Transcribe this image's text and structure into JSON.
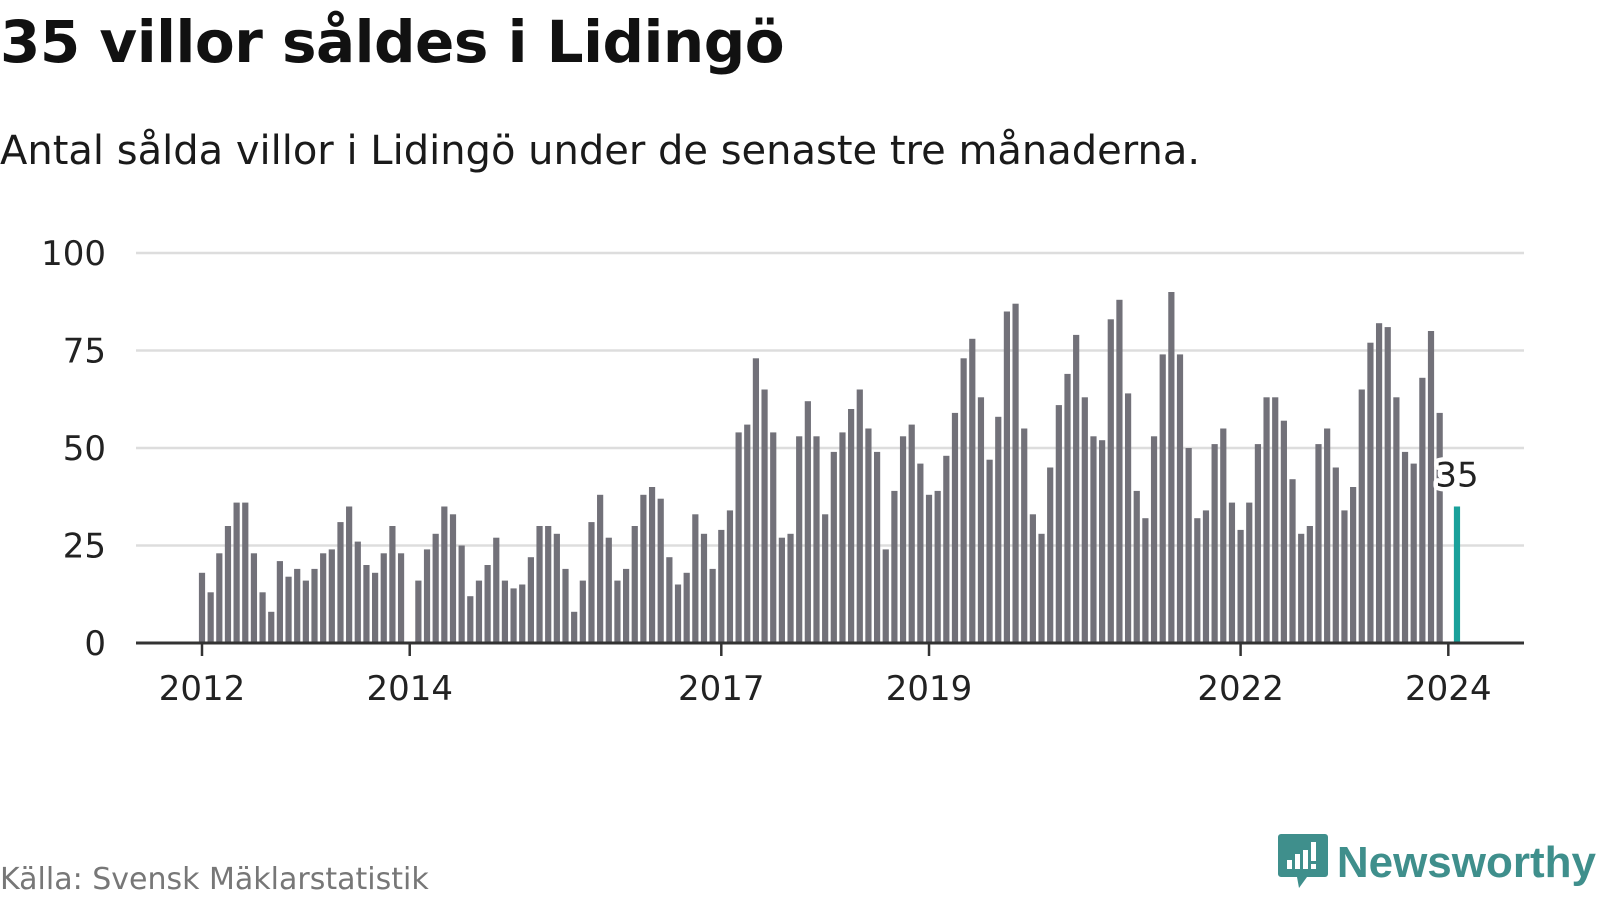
{
  "title": "35 villor såldes i Lidingö",
  "subtitle": "Antal sålda villor i Lidingö under de senaste tre månaderna.",
  "source": "Källa: Svensk Mäklarstatistik",
  "brand": {
    "name": "Newsworthy",
    "icon": "newsworthy-logo-icon",
    "color": "#3f8f8c"
  },
  "colors": {
    "bar": "#727179",
    "highlight": "#1aa19b",
    "grid": "#dddddd",
    "axis": "#333333"
  },
  "chart_data": {
    "type": "bar",
    "title": "35 villor såldes i Lidingö",
    "xlabel": "",
    "ylabel": "",
    "ylim": [
      0,
      100
    ],
    "yticks": [
      0,
      25,
      50,
      75,
      100
    ],
    "grid": true,
    "legend": "none",
    "x_start": "2011-01",
    "x_tick_labels": [
      {
        "label": "2012",
        "index": 12
      },
      {
        "label": "2014",
        "index": 36
      },
      {
        "label": "2017",
        "index": 72
      },
      {
        "label": "2019",
        "index": 96
      },
      {
        "label": "2022",
        "index": 132
      },
      {
        "label": "2024",
        "index": 156
      }
    ],
    "values": [
      null,
      null,
      null,
      null,
      null,
      null,
      null,
      null,
      null,
      null,
      null,
      null,
      18,
      13,
      23,
      30,
      36,
      36,
      23,
      13,
      8,
      21,
      17,
      19,
      16,
      19,
      23,
      24,
      31,
      35,
      26,
      20,
      18,
      23,
      30,
      23,
      null,
      16,
      24,
      28,
      35,
      33,
      25,
      12,
      16,
      20,
      27,
      16,
      14,
      15,
      22,
      30,
      30,
      28,
      19,
      8,
      16,
      31,
      38,
      27,
      16,
      19,
      30,
      38,
      40,
      37,
      22,
      15,
      18,
      33,
      28,
      19,
      29,
      34,
      54,
      56,
      73,
      65,
      54,
      27,
      28,
      53,
      62,
      53,
      33,
      49,
      54,
      60,
      65,
      55,
      49,
      24,
      39,
      53,
      56,
      46,
      38,
      39,
      48,
      59,
      73,
      78,
      63,
      47,
      58,
      85,
      87,
      55,
      33,
      28,
      45,
      61,
      69,
      79,
      63,
      53,
      52,
      83,
      88,
      64,
      39,
      32,
      53,
      74,
      90,
      74,
      50,
      32,
      34,
      51,
      55,
      36,
      29,
      36,
      51,
      63,
      63,
      57,
      42,
      28,
      30,
      51,
      55,
      45,
      34,
      40,
      65,
      77,
      82,
      81,
      63,
      49,
      46,
      68,
      80,
      59,
      null,
      35
    ],
    "highlight": {
      "index": 157,
      "value": 35,
      "label": "35"
    }
  }
}
